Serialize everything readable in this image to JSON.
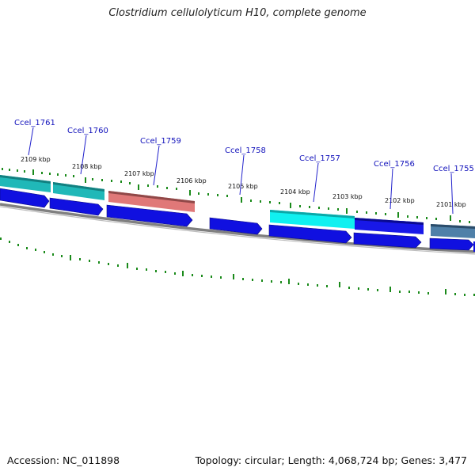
{
  "title": "Clostridium cellulolyticum H10, complete genome",
  "accession": "Accession: NC_011898",
  "info": "Topology: circular; Length: 4,068,724 bp; Genes: 3,477",
  "ticks": [
    "2109 kbp",
    "2108 kbp",
    "2107 kbp",
    "2106 kbp",
    "2105 kbp",
    "2104 kbp",
    "2103 kbp",
    "2102 kbp",
    "2101 kbp"
  ],
  "genes": [
    "Ccel_1761",
    "Ccel_1760",
    "Ccel_1759",
    "Ccel_1758",
    "Ccel_1757",
    "Ccel_1756",
    "Ccel_1755"
  ],
  "colors": {
    "backbone": "#777777",
    "tick": "#1a8a1a",
    "cds": "#1010e0",
    "teal": "#20b8b8",
    "cyan": "#10e8e8",
    "salmon": "#e07070",
    "steel": "#4a7aa0",
    "label": "#1111bb"
  }
}
